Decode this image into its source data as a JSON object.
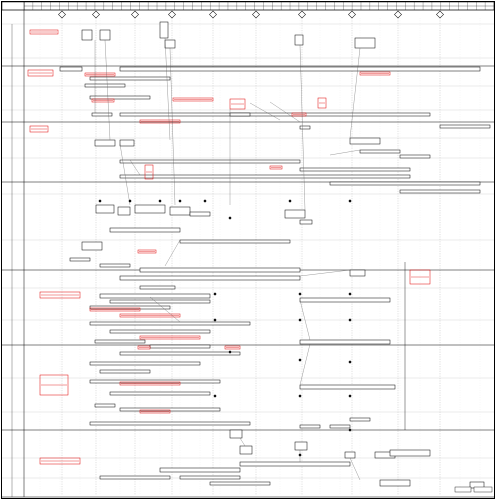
{
  "chart_data": {
    "type": "table",
    "header": {
      "row_labels": [
        "",
        ""
      ],
      "timeline_cells": 53
    },
    "milestones": [
      {
        "index": 1
      },
      {
        "index": 2
      },
      {
        "index": 3
      },
      {
        "index": 4
      },
      {
        "index": 5
      },
      {
        "index": 6
      },
      {
        "index": 7
      },
      {
        "index": 8
      },
      {
        "index": 9
      },
      {
        "index": 10
      }
    ],
    "lanes": [
      {
        "id": "lane-1"
      },
      {
        "id": "lane-2"
      },
      {
        "id": "lane-3"
      },
      {
        "id": "lane-4"
      },
      {
        "id": "lane-5"
      },
      {
        "id": "lane-6"
      },
      {
        "id": "lane-7"
      },
      {
        "id": "lane-8"
      },
      {
        "id": "lane-9"
      },
      {
        "id": "lane-10"
      },
      {
        "id": "lane-11"
      },
      {
        "id": "lane-12"
      },
      {
        "id": "lane-13"
      },
      {
        "id": "lane-14"
      },
      {
        "id": "lane-15"
      },
      {
        "id": "lane-16"
      },
      {
        "id": "lane-17"
      },
      {
        "id": "lane-18"
      },
      {
        "id": "lane-19"
      },
      {
        "id": "lane-20"
      }
    ]
  },
  "colors": {
    "line": "#000000",
    "accent": "#e00000",
    "dash": "#9a9a9a",
    "background": "#ffffff"
  },
  "legend": {
    "items": [
      "",
      ""
    ]
  }
}
